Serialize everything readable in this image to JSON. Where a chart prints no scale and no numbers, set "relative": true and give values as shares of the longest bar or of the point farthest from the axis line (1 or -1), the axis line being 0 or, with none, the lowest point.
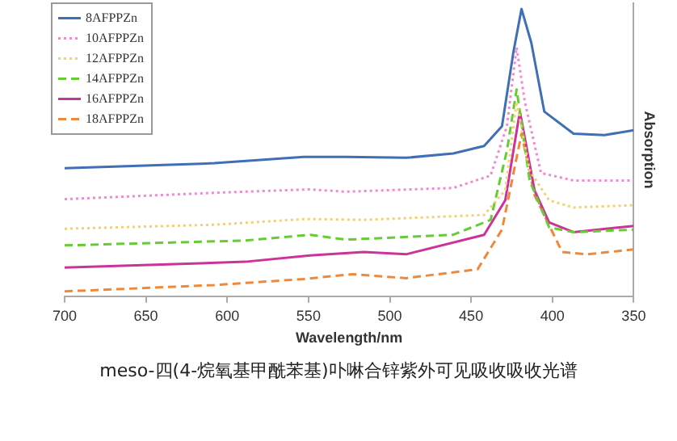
{
  "chart_data": {
    "type": "line",
    "relative": true,
    "xlabel": "Wavelength/nm",
    "ylabel": "Absorption",
    "annotations": [
      "meso-四(4-烷氧基甲酰苯基)卟啉合锌紫外可见吸收吸收光谱"
    ],
    "xlim": [
      700,
      350
    ],
    "xticks": [
      700,
      650,
      600,
      550,
      500,
      450,
      400,
      350
    ],
    "grid": false,
    "legend": "top left",
    "marker": "none",
    "series": [
      {
        "name": "8AFPPZn",
        "color": "#3f6fb5",
        "line_style": "solid",
        "x": [
          700,
          608,
          553,
          527,
          490,
          461,
          442,
          431,
          424,
          419,
          413,
          405,
          387,
          368,
          350
        ],
        "values": [
          0.446,
          0.463,
          0.485,
          0.485,
          0.482,
          0.497,
          0.523,
          0.592,
          0.849,
          1,
          0.883,
          0.643,
          0.566,
          0.561,
          0.578
        ]
      },
      {
        "name": "10AFPPZn",
        "color": "#f08ad0",
        "line_style": "dotted",
        "x": [
          700,
          608,
          549,
          527,
          461,
          438,
          428,
          422,
          417,
          407,
          387,
          350
        ],
        "values": [
          0.338,
          0.36,
          0.372,
          0.364,
          0.377,
          0.42,
          0.592,
          0.866,
          0.678,
          0.429,
          0.403,
          0.403
        ]
      },
      {
        "name": "12AFPPZn",
        "color": "#f5d070",
        "line_style": "dotted",
        "x": [
          700,
          608,
          551,
          516,
          442,
          429,
          422,
          414,
          402,
          387,
          350
        ],
        "values": [
          0.235,
          0.249,
          0.269,
          0.266,
          0.283,
          0.369,
          0.678,
          0.437,
          0.334,
          0.309,
          0.317
        ]
      },
      {
        "name": "14AFPPZn",
        "color": "#66cc33",
        "line_style": "dashed",
        "x": [
          700,
          589,
          549,
          527,
          461,
          438,
          428,
          422,
          414,
          402,
          387,
          350
        ],
        "values": [
          0.177,
          0.194,
          0.214,
          0.197,
          0.214,
          0.266,
          0.506,
          0.72,
          0.403,
          0.24,
          0.223,
          0.232
        ]
      },
      {
        "name": "16AFPPZn",
        "color": "#cc3399",
        "line_style": "solid",
        "x": [
          700,
          589,
          549,
          516,
          490,
          442,
          429,
          420,
          411,
          402,
          387,
          350
        ],
        "values": [
          0.1,
          0.12,
          0.142,
          0.154,
          0.146,
          0.214,
          0.334,
          0.643,
          0.369,
          0.257,
          0.223,
          0.245
        ]
      },
      {
        "name": "18AFPPZn",
        "color": "#f0883a",
        "line_style": "dashed",
        "x": [
          700,
          608,
          553,
          523,
          490,
          446,
          431,
          419,
          411,
          394,
          379,
          350
        ],
        "values": [
          0.017,
          0.039,
          0.06,
          0.077,
          0.063,
          0.094,
          0.232,
          0.566,
          0.352,
          0.154,
          0.146,
          0.163
        ]
      }
    ]
  }
}
